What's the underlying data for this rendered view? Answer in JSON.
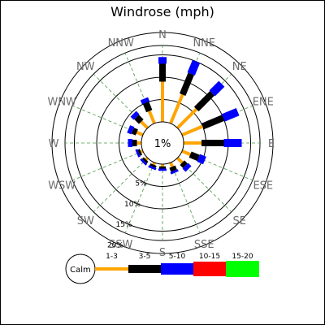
{
  "chart_data": {
    "type": "windrose",
    "title": "Windrose (mph)",
    "directions": [
      "N",
      "NNE",
      "NE",
      "ENE",
      "E",
      "ESE",
      "SE",
      "SSE",
      "S",
      "SSW",
      "SW",
      "WSW",
      "W",
      "WNW",
      "NW",
      "NNW"
    ],
    "rings": [
      5,
      10,
      15,
      20
    ],
    "ring_labels": [
      "5%",
      "10%",
      "15%",
      "20%"
    ],
    "calm_label": "1%",
    "calm_percent": 1,
    "legend_calm": "Calm",
    "series": [
      {
        "name": "1-3",
        "color": "#ffa500",
        "values": [
          9,
          7,
          6,
          5,
          4,
          2,
          1.5,
          1,
          0.5,
          0.5,
          0.5,
          0.5,
          1,
          1.5,
          2,
          3
        ]
      },
      {
        "name": "3-5",
        "color": "#000000",
        "values": [
          4,
          5,
          5,
          5,
          5,
          2,
          1,
          1,
          0.5,
          0.5,
          0.5,
          0.5,
          1,
          1,
          1.5,
          2
        ]
      },
      {
        "name": "5-10",
        "color": "#0000ff",
        "values": [
          1.5,
          3,
          3,
          3.5,
          4,
          1.5,
          1,
          0.5,
          0.5,
          0.5,
          0.5,
          0.5,
          1,
          1,
          1,
          1
        ]
      },
      {
        "name": "10-15",
        "color": "#ff0000",
        "values": [
          0,
          0,
          0,
          0,
          0,
          0,
          0,
          0,
          0,
          0,
          0,
          0,
          0,
          0,
          0,
          0
        ]
      },
      {
        "name": "15-20",
        "color": "#00ff00",
        "values": [
          0,
          0,
          0,
          0,
          0,
          0,
          0,
          0,
          0,
          0,
          0,
          0,
          0,
          0,
          0,
          0
        ]
      }
    ],
    "grid": true,
    "legend_position": "bottom"
  }
}
